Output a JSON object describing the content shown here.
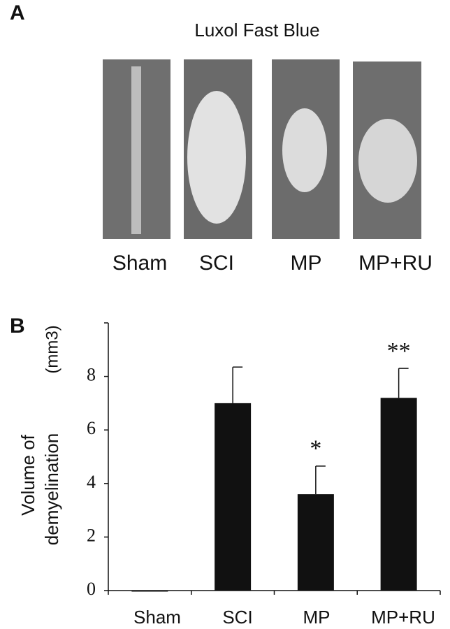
{
  "panel_a": {
    "letter": "A",
    "title": "Luxol Fast Blue",
    "labels": [
      "Sham",
      "SCI",
      "MP",
      "MP+RU"
    ]
  },
  "chart_data": {
    "type": "bar",
    "letter": "B",
    "y_label_lines": [
      "Volume of",
      "demyelination",
      "(mm3)"
    ],
    "categories": [
      "Sham",
      "SCI",
      "MP",
      "MP+RU"
    ],
    "values": [
      0,
      7.0,
      3.6,
      7.2
    ],
    "errors": [
      null,
      1.35,
      1.05,
      1.1
    ],
    "annotations": [
      null,
      null,
      "*",
      "**"
    ],
    "color": "#111111",
    "ylim": [
      0,
      10
    ],
    "yticks": [
      0,
      2,
      4,
      6,
      8
    ]
  }
}
